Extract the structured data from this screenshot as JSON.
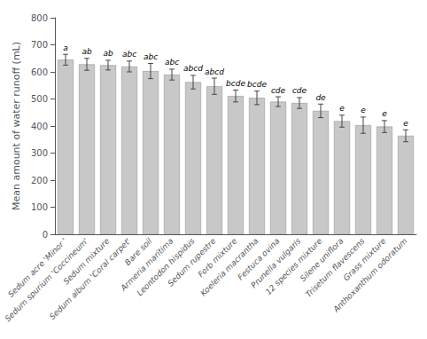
{
  "chart_data": {
    "type": "bar",
    "categories": [
      "Sedum acre 'Minor '",
      "Sedum spurium 'Coccineum'",
      "Sedum mixture",
      "Sedum album 'Coral carpet'",
      "Bare soil",
      "Armeria maritima",
      "Leontodon hispidus",
      "Sedum rupestre",
      "Forb mixture",
      "Koeleria macrantha",
      "Festuca ovina",
      "Prunella vulgaris",
      "12 species mixture",
      "Silene uniflora",
      "Trisetum flavescens",
      "Grass mixture",
      "Anthoxanthum odoratum"
    ],
    "values": [
      645,
      628,
      625,
      620,
      603,
      590,
      562,
      547,
      511,
      504,
      490,
      485,
      456,
      418,
      403,
      398,
      364
    ],
    "errors": [
      20,
      22,
      18,
      20,
      28,
      20,
      25,
      30,
      22,
      25,
      18,
      20,
      25,
      22,
      30,
      22,
      22
    ],
    "annotations": [
      "a",
      "ab",
      "ab",
      "abc",
      "abc",
      "abc",
      "abcd",
      "abcd",
      "bcde",
      "bcde",
      "cde",
      "cde",
      "de",
      "e",
      "e",
      "e",
      "e"
    ],
    "color": "#c8c8c8",
    "ylabel": "Mean amount of water runoff (mL)",
    "ylim": [
      0,
      800
    ],
    "yticks": [
      0,
      100,
      200,
      300,
      400,
      500,
      600,
      700,
      800
    ],
    "grid": false
  }
}
